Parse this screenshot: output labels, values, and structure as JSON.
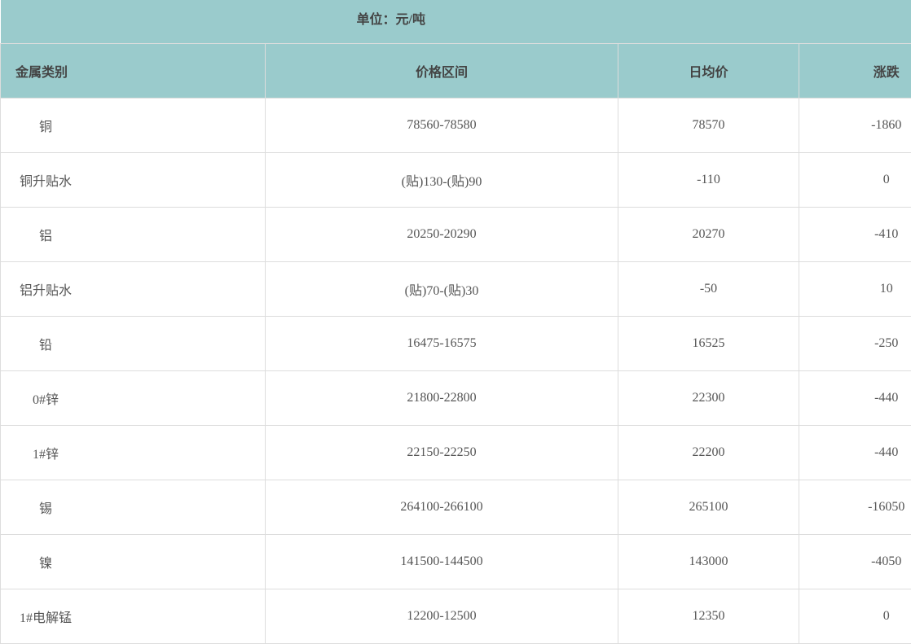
{
  "unit_label": "单位：元/吨",
  "columns": [
    "金属类别",
    "价格区间",
    "日均价",
    "涨跌"
  ],
  "rows": [
    [
      "铜",
      "78560-78580",
      "78570",
      "-1860"
    ],
    [
      "铜升贴水",
      "(贴)130-(贴)90",
      "-110",
      "0"
    ],
    [
      "铝",
      "20250-20290",
      "20270",
      "-410"
    ],
    [
      "铝升贴水",
      "(贴)70-(贴)30",
      "-50",
      "10"
    ],
    [
      "铅",
      "16475-16575",
      "16525",
      "-250"
    ],
    [
      "0#锌",
      "21800-22800",
      "22300",
      "-440"
    ],
    [
      "1#锌",
      "22150-22250",
      "22200",
      "-440"
    ],
    [
      "锡",
      "264100-266100",
      "265100",
      "-16050"
    ],
    [
      "镍",
      "141500-144500",
      "143000",
      "-4050"
    ],
    [
      "1#电解锰",
      "12200-12500",
      "12350",
      "0"
    ]
  ],
  "colors": {
    "header_bg": "#9acbcc",
    "border": "#dddddd"
  }
}
